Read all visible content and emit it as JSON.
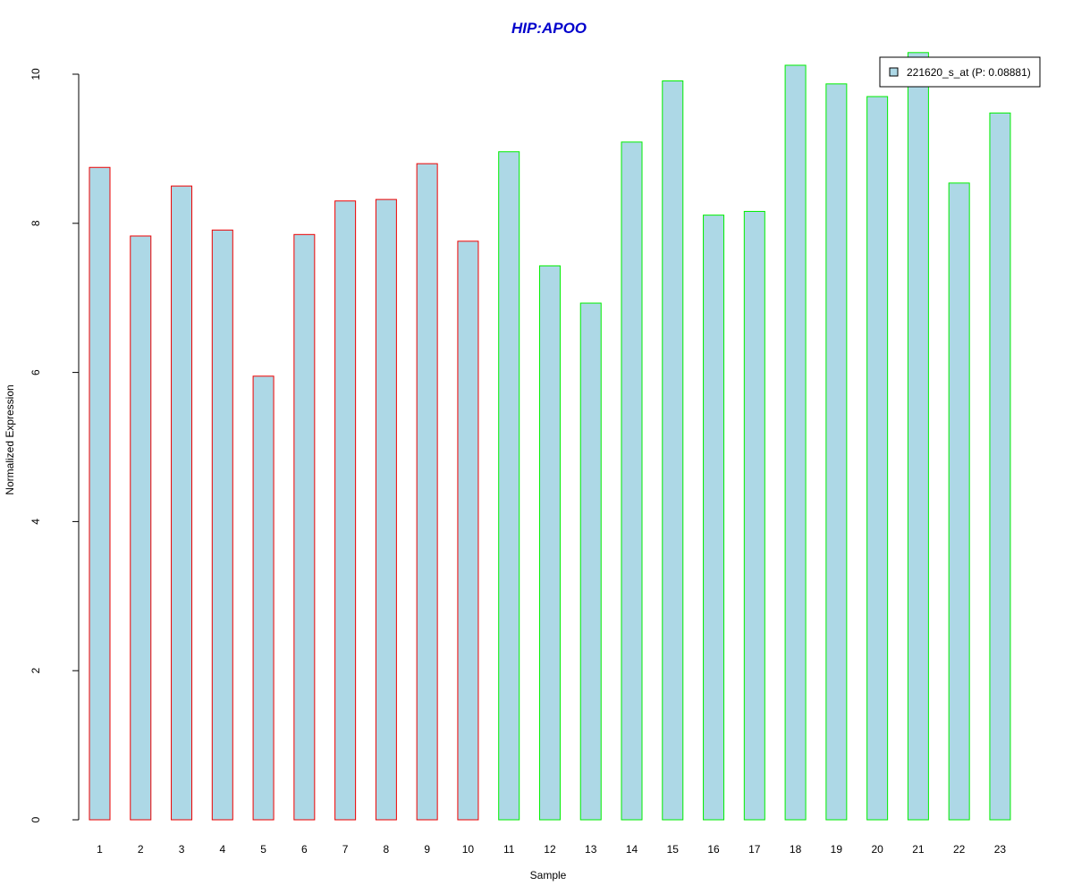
{
  "chart_data": {
    "type": "bar",
    "title": "HIP:APOO",
    "xlabel": "Sample",
    "ylabel": "Normalized Expression",
    "categories": [
      "1",
      "2",
      "3",
      "4",
      "5",
      "6",
      "7",
      "8",
      "9",
      "10",
      "11",
      "12",
      "13",
      "14",
      "15",
      "16",
      "17",
      "18",
      "19",
      "20",
      "21",
      "22",
      "23"
    ],
    "values": [
      8.75,
      7.83,
      8.5,
      7.91,
      5.95,
      7.85,
      8.3,
      8.32,
      8.8,
      7.76,
      8.96,
      7.43,
      6.93,
      9.09,
      9.91,
      8.11,
      8.16,
      10.12,
      9.87,
      9.7,
      10.29,
      8.54,
      9.48
    ],
    "y_ticks": [
      "0",
      "2",
      "4",
      "6",
      "8",
      "10"
    ],
    "ylim": [
      0,
      10.3
    ],
    "legend": {
      "label": "221620_s_at (P: 0.08881)",
      "placement": "top-right"
    },
    "grid": false
  },
  "colors": {
    "title": "#0000cc",
    "bar_fill": "#add8e6",
    "group1_border": "#ee0000",
    "group2_border": "#00ee00",
    "axis": "#000000"
  },
  "group1_count": 10
}
